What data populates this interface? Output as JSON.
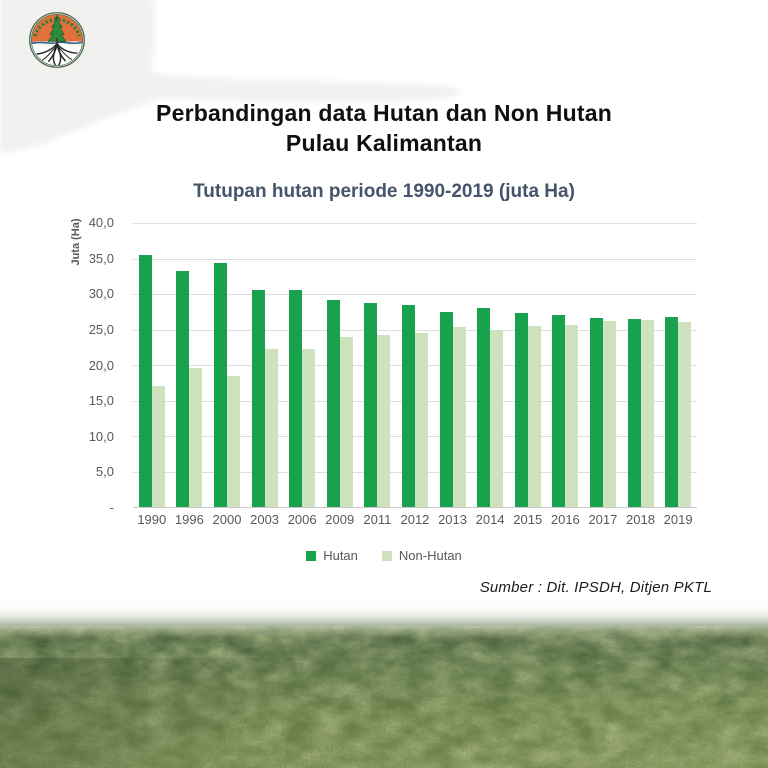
{
  "header": {
    "title_line1": "Perbandingan data Hutan dan Non Hutan",
    "title_line2": "Pulau Kalimantan"
  },
  "chart_data": {
    "type": "bar",
    "title": "Tutupan hutan periode 1990-2019 (juta Ha)",
    "categories": [
      "1990",
      "1996",
      "2000",
      "2003",
      "2006",
      "2009",
      "2011",
      "2012",
      "2013",
      "2014",
      "2015",
      "2016",
      "2017",
      "2018",
      "2019"
    ],
    "series": [
      {
        "name": "Hutan",
        "color": "#19a24d",
        "values": [
          35.5,
          33.2,
          34.4,
          30.6,
          30.5,
          29.2,
          28.7,
          28.4,
          27.5,
          28.1,
          27.3,
          27.1,
          26.6,
          26.5,
          26.7
        ]
      },
      {
        "name": "Non-Hutan",
        "color": "#cee3bd",
        "values": [
          17.1,
          19.6,
          18.4,
          22.3,
          22.3,
          23.9,
          24.2,
          24.5,
          25.3,
          24.9,
          25.5,
          25.7,
          26.2,
          26.3,
          26.1
        ]
      }
    ],
    "ylabel": "Juta (Ha)",
    "ylim": [
      0,
      40
    ],
    "ytick_labels": [
      "40,0",
      "35,0",
      "30,0",
      "25,0",
      "20,0",
      "15,0",
      "10,0",
      "5,0",
      "-"
    ],
    "grid": true,
    "legend_position": "bottom"
  },
  "footer": {
    "source": "Sumber : Dit. IPSDH, Ditjen PKTL"
  },
  "icons": {
    "logo": "ministry-of-environment-and-forestry-emblem",
    "photo": "aerial-forest-canopy-photo"
  },
  "colors": {
    "hutan_green": "#19a24d",
    "non_hutan_green": "#cee3bd",
    "subtitle_slate": "#44546a",
    "axis_gray": "#595959"
  }
}
